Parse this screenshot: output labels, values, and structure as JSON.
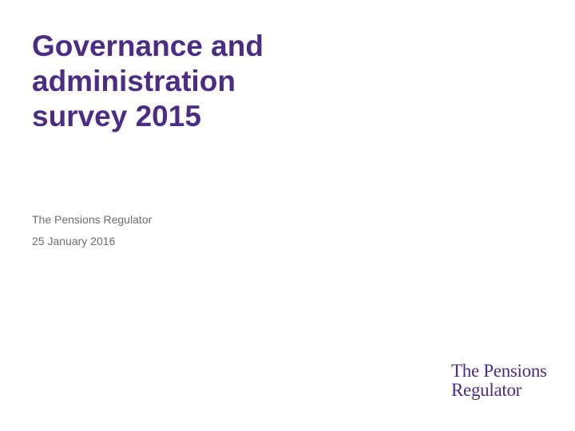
{
  "slide": {
    "title_lines": [
      "Governance and",
      "administration",
      "survey 2015"
    ],
    "organisation": "The Pensions Regulator",
    "date": "25 January 2016"
  },
  "logo": {
    "lines": [
      "The Pensions",
      "Regulator"
    ]
  },
  "colors": {
    "title": "#4b2d83",
    "subtitle": "#6d6d6d",
    "logo": "#4b2d83",
    "background": "#ffffff"
  }
}
